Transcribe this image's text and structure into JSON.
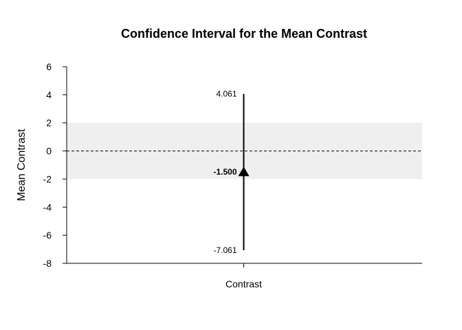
{
  "chart_data": {
    "type": "scatter",
    "title": "Confidence Interval for the Mean Contrast",
    "xlabel": "",
    "ylabel": "Mean Contrast",
    "categories": [
      "Contrast"
    ],
    "ylim": [
      -8,
      6
    ],
    "yticks": [
      "6",
      "4",
      "2",
      "0",
      "-2",
      "-4",
      "-6",
      "-8"
    ],
    "ytick_values": [
      6,
      4,
      2,
      0,
      -2,
      -4,
      -6,
      -8
    ],
    "estimate": -1.5,
    "lower": -7.061,
    "upper": 4.061,
    "labels": {
      "estimate": "-1.500",
      "lower": "-7.061",
      "upper": "4.061"
    },
    "shaded_band": [
      -2,
      2
    ],
    "reference_line": 0,
    "colors": {
      "band": "#efefef",
      "line": "#000000"
    }
  }
}
